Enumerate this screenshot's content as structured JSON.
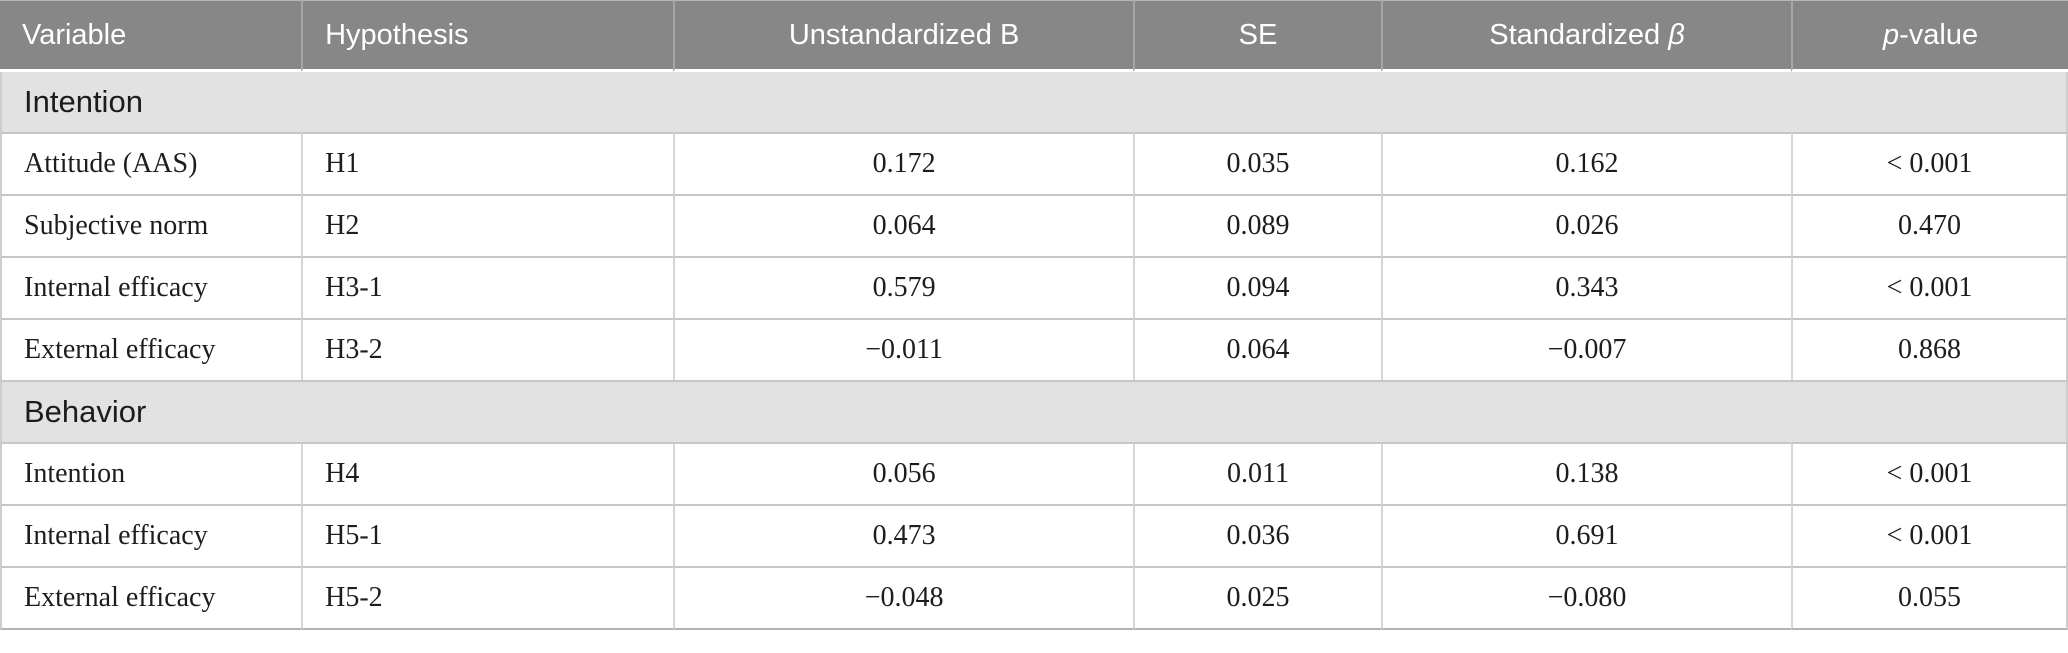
{
  "table": {
    "title_semantic": "Regression results by outcome (Intention, Behavior)",
    "columns": [
      {
        "pre": "Variable",
        "it": "",
        "post": ""
      },
      {
        "pre": "Hypothesis",
        "it": "",
        "post": ""
      },
      {
        "pre": "Unstandardized B",
        "it": "",
        "post": ""
      },
      {
        "pre": "SE",
        "it": "",
        "post": ""
      },
      {
        "pre": "Standardized ",
        "it": "β",
        "post": ""
      },
      {
        "pre": "",
        "it": "p",
        "post": "-value"
      }
    ],
    "sections": [
      {
        "title": "Intention",
        "rows": [
          {
            "variable": "Attitude (AAS)",
            "hypothesis": "H1",
            "b": "0.172",
            "se": "0.035",
            "beta": "0.162",
            "p": "< 0.001"
          },
          {
            "variable": "Subjective norm",
            "hypothesis": "H2",
            "b": "0.064",
            "se": "0.089",
            "beta": "0.026",
            "p": "0.470"
          },
          {
            "variable": "Internal efficacy",
            "hypothesis": "H3-1",
            "b": "0.579",
            "se": "0.094",
            "beta": "0.343",
            "p": "< 0.001"
          },
          {
            "variable": "External efficacy",
            "hypothesis": "H3-2",
            "b": "−0.011",
            "se": "0.064",
            "beta": "−0.007",
            "p": "0.868"
          }
        ]
      },
      {
        "title": "Behavior",
        "rows": [
          {
            "variable": "Intention",
            "hypothesis": "H4",
            "b": "0.056",
            "se": "0.011",
            "beta": "0.138",
            "p": "< 0.001"
          },
          {
            "variable": "Internal efficacy",
            "hypothesis": "H5-1",
            "b": "0.473",
            "se": "0.036",
            "beta": "0.691",
            "p": "< 0.001"
          },
          {
            "variable": "External efficacy",
            "hypothesis": "H5-2",
            "b": "−0.048",
            "se": "0.025",
            "beta": "−0.080",
            "p": "0.055"
          }
        ]
      }
    ],
    "colors": {
      "header_bg": "#878787",
      "header_text": "#ffffff",
      "header_divider": "#a6a6a6",
      "section_bg": "#e2e2e2",
      "row_divider": "#c6c6c6",
      "col_divider": "#d6d6d6",
      "body_text": "#1d1d1d"
    }
  }
}
